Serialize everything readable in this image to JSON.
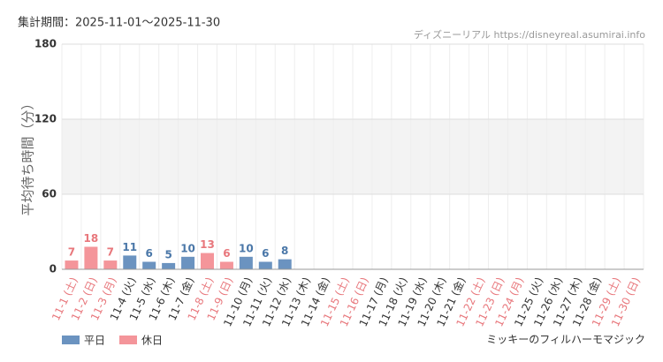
{
  "chart_data": {
    "type": "bar",
    "period": "集計期間：2025-11-01～2025-11-30",
    "source": "ディズニーリアル https://disneyreal.asumirai.info",
    "y_label": "平均待ち時間（分）",
    "attraction": "ミッキーのフィルハーモマジック",
    "categories": [
      "11-1 (土)",
      "11-2 (日)",
      "11-3 (月)",
      "11-4 (火)",
      "11-5 (水)",
      "11-6 (木)",
      "11-7 (金)",
      "11-8 (土)",
      "11-9 (日)",
      "11-10 (月)",
      "11-11 (火)",
      "11-12 (水)",
      "11-13 (木)",
      "11-14 (金)",
      "11-15 (土)",
      "11-16 (日)",
      "11-17 (月)",
      "11-18 (火)",
      "11-19 (水)",
      "11-20 (木)",
      "11-21 (金)",
      "11-22 (土)",
      "11-23 (日)",
      "11-24 (月)",
      "11-25 (火)",
      "11-26 (水)",
      "11-27 (木)",
      "11-28 (金)",
      "11-29 (土)",
      "11-30 (日)"
    ],
    "category_colors": [
      "#e8777c",
      "#e8777c",
      "#e8777c",
      "#333333",
      "#333333",
      "#333333",
      "#333333",
      "#e8777c",
      "#e8777c",
      "#333333",
      "#333333",
      "#333333",
      "#333333",
      "#333333",
      "#e8777c",
      "#e8777c",
      "#333333",
      "#333333",
      "#333333",
      "#333333",
      "#333333",
      "#e8777c",
      "#e8777c",
      "#e8777c",
      "#333333",
      "#333333",
      "#333333",
      "#333333",
      "#e8777c",
      "#e8777c"
    ],
    "series": [
      {
        "name": "平日",
        "color": "#6b93c0",
        "label_color": "#4a77a8",
        "values": [
          null,
          null,
          null,
          11,
          6,
          5,
          10,
          null,
          null,
          10,
          6,
          8,
          null,
          null,
          null,
          null,
          null,
          null,
          null,
          null,
          null,
          null,
          null,
          null,
          null,
          null,
          null,
          null,
          null,
          null
        ]
      },
      {
        "name": "休日",
        "color": "#f4959a",
        "label_color": "#e8777c",
        "values": [
          7,
          18,
          7,
          null,
          null,
          null,
          null,
          13,
          6,
          null,
          null,
          null,
          null,
          null,
          null,
          null,
          null,
          null,
          null,
          null,
          null,
          null,
          null,
          null,
          null,
          null,
          null,
          null,
          null,
          null
        ]
      }
    ],
    "ylim": [
      0,
      180
    ],
    "yticks": [
      0,
      60,
      120,
      180
    ],
    "grid": true,
    "highlight_range": [
      60,
      120
    ]
  }
}
